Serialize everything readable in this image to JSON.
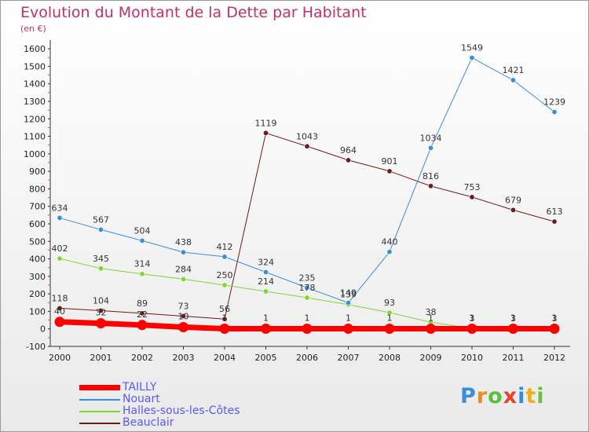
{
  "title": "Evolution du Montant de la Dette par Habitant",
  "subtitle": "(en €)",
  "brand": {
    "letters": [
      "P",
      "r",
      "o",
      "x",
      "i",
      "t",
      "i"
    ],
    "colors": [
      "#3a8fd8",
      "#f08a1c",
      "#5bbf3c",
      "#e8402a",
      "#2a8fd8",
      "#f0b01c",
      "#6dbf3c"
    ]
  },
  "chart_data": {
    "type": "line",
    "x": [
      "2000",
      "2001",
      "2002",
      "2003",
      "2004",
      "2005",
      "2006",
      "2007",
      "2008",
      "2009",
      "2010",
      "2011",
      "2012"
    ],
    "yticks": [
      "-100",
      "0",
      "100",
      "200",
      "300",
      "400",
      "500",
      "600",
      "700",
      "800",
      "900",
      "1000",
      "1100",
      "1200",
      "1300",
      "1400",
      "1500",
      "1600"
    ],
    "ylim": [
      -100,
      1650
    ],
    "grid": false,
    "legend_position": "bottom-left",
    "series": [
      {
        "name": "TAILLY",
        "color": "#ff0000",
        "width": 7,
        "values": [
          40,
          32,
          22,
          10,
          1,
          1,
          1,
          1,
          1,
          1,
          1,
          1,
          1
        ],
        "labels": [
          "40",
          "32",
          "22",
          "10",
          "1",
          "1",
          "1",
          "1",
          "1",
          "1",
          "1",
          "1",
          "1"
        ]
      },
      {
        "name": "Nouart",
        "color": "#3a8ed6",
        "width": 1,
        "values": [
          634,
          567,
          504,
          438,
          412,
          324,
          235,
          149,
          440,
          1034,
          1549,
          1421,
          1239
        ],
        "labels": [
          "634",
          "567",
          "504",
          "438",
          "412",
          "324",
          "235",
          "149",
          "440",
          "1034",
          "1549",
          "1421",
          "1239"
        ]
      },
      {
        "name": "Halles-sous-les-Côtes",
        "color": "#7ed630",
        "width": 1,
        "values": [
          402,
          345,
          314,
          284,
          250,
          214,
          178,
          139,
          93,
          38,
          3,
          3,
          3
        ],
        "labels": [
          "402",
          "345",
          "314",
          "284",
          "250",
          "214",
          "178",
          "139",
          "93",
          "38",
          "3",
          "3",
          "3"
        ]
      },
      {
        "name": "Beauclair",
        "color": "#6b1c1c",
        "width": 1,
        "values": [
          118,
          104,
          89,
          73,
          56,
          1119,
          1043,
          964,
          901,
          816,
          753,
          679,
          613
        ],
        "labels": [
          "118",
          "104",
          "89",
          "73",
          "56",
          "1119",
          "1043",
          "964",
          "901",
          "816",
          "753",
          "679",
          "613"
        ]
      }
    ]
  }
}
